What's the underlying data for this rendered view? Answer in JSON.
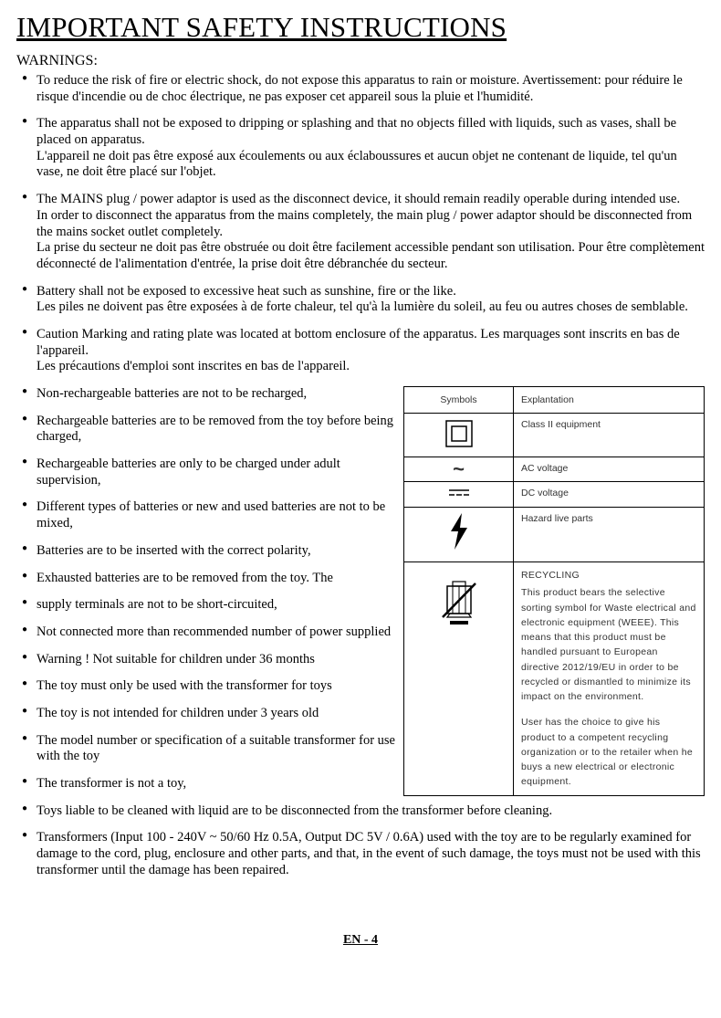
{
  "title": "IMPORTANT SAFETY INSTRUCTIONS",
  "warnings_label": "WARNINGS:",
  "top_bullets": [
    [
      "To reduce the risk of fire or electric shock, do not expose this apparatus to rain or moisture. Avertissement: pour réduire le risque d'incendie ou de choc électrique, ne pas exposer cet appareil sous la pluie et l'humidité."
    ],
    [
      "The apparatus shall not be exposed to dripping or splashing and that no objects filled with liquids, such as vases, shall be placed on apparatus.",
      "L'appareil ne doit pas être exposé aux écoulements ou aux éclaboussures et aucun objet ne contenant de liquide, tel qu'un vase, ne doit être placé sur l'objet."
    ],
    [
      "The MAINS plug / power adaptor is used as the disconnect device, it should remain readily operable during intended use.",
      "In order to disconnect the apparatus from the mains completely, the main plug / power adaptor should be disconnected from the mains socket outlet completely.",
      "La prise du secteur ne doit pas être obstruée ou doit être facilement accessible pendant son utilisation. Pour être complètement déconnecté de l'alimentation d'entrée, la prise doit être débranchée du secteur."
    ],
    [
      "Battery shall not be exposed to excessive heat such as sunshine, fire or the like.",
      "Les piles ne doivent pas être exposées à de forte chaleur, tel qu'à la lumière du soleil, au feu ou autres choses de semblable."
    ],
    [
      "Caution Marking and rating plate was located at bottom enclosure of the apparatus. Les marquages sont inscrits en bas de l'appareil.",
      "Les précautions d'emploi sont inscrites en bas de l'appareil."
    ]
  ],
  "left_bullets": [
    "Non-rechargeable batteries are not to be recharged,",
    "Rechargeable batteries are to be removed from the toy before being charged,",
    "Rechargeable batteries are only to be charged under adult supervision,",
    "Different types of batteries or new and used batteries are not to be mixed,",
    "Batteries  are  to  be  inserted  with  the  correct  polarity,",
    "Exhausted batteries are to be removed from the toy. The",
    "supply terminals are not to be short-circuited,",
    "Not connected more than recommended number of power supplied",
    "Warning ! Not suitable for children under 36 months",
    "The toy must only be used with the  transformer for toys",
    "The toy is not intended for children under 3 years old",
    "The model number or specification of a suitable transformer for use with the toy",
    "The transformer is not a toy,"
  ],
  "bottom_bullets": [
    "Toys liable to be cleaned with liquid are to be disconnected from the transformer before cleaning.",
    "Transformers (Input 100 - 240V ~ 50/60 Hz 0.5A, Output DC 5V / 0.6A) used with the toy are to be regularly examined for damage to the cord, plug, enclosure and other parts, and that, in the event of such damage, the toys must not be used with this transformer until the damage has been repaired."
  ],
  "table": {
    "header_symbols": "Symbols",
    "header_explanation": "Explantation",
    "row_class2": "Class  II  equipment",
    "row_ac": "AC  voltage",
    "row_dc": "DC  voltage",
    "row_hazard": "Hazard  live  parts",
    "recycling_title": "RECYCLING",
    "recycling_p1": "This  product  bears  the  selective sorting  symbol  for  Waste  electrical and  electronic  equipment  (WEEE). This  means  that  this  product  must be  handled  pursuant  to  European directive  2012/19/EU   in  order  to be  recycled  or  dismantled  to minimize  its  impact  on  the environment.",
    "recycling_p2": "User  has  the  choice  to  give  his product  to  a  competent  recycling organization  or  to  the  retailer  when he  buys  a  new  electrical   or electronic   equipment."
  },
  "footer": "EN - 4"
}
